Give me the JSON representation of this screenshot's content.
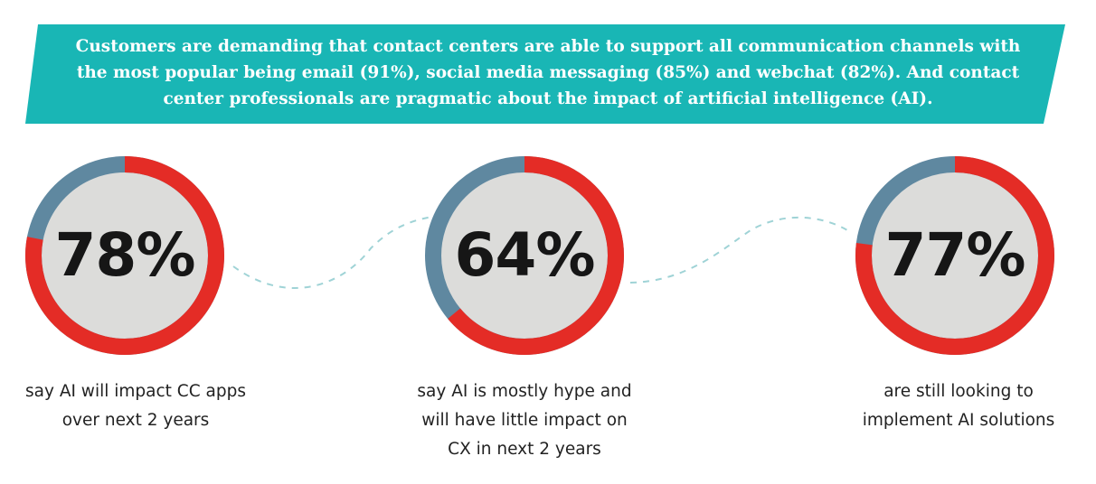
{
  "banner": {
    "lines": [
      "Customers are demanding that contact centers are able to support all communication channels with",
      "the most popular being email (91%), social media messaging (85%) and webchat (82%). And contact",
      "center professionals are pragmatic about the impact of artificial intelligence (AI)."
    ]
  },
  "colors": {
    "banner": "#19b6b5",
    "ring_primary": "#e42c26",
    "ring_secondary": "#5f88a0",
    "circle_fill": "#dcdcda",
    "connector": "#9fd3d6"
  },
  "chart_data": {
    "type": "pie",
    "title": "",
    "series": [
      {
        "value": 78,
        "value_label": "78%",
        "caption": [
          "say AI will impact CC apps",
          "over next 2 years"
        ]
      },
      {
        "value": 64,
        "value_label": "64%",
        "caption": [
          "say AI is mostly hype and",
          "will have little impact on",
          "CX in next 2 years"
        ]
      },
      {
        "value": 77,
        "value_label": "77%",
        "caption": [
          "are still looking to",
          "implement AI solutions"
        ]
      }
    ]
  }
}
